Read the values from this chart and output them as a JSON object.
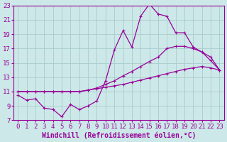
{
  "xlabel": "Windchill (Refroidissement éolien,°C)",
  "background_color": "#cce8e8",
  "grid_color": "#aacccc",
  "line_color": "#990099",
  "xlim": [
    -0.5,
    23.5
  ],
  "ylim": [
    7,
    23
  ],
  "xticks": [
    0,
    1,
    2,
    3,
    4,
    5,
    6,
    7,
    8,
    9,
    10,
    11,
    12,
    13,
    14,
    15,
    16,
    17,
    18,
    19,
    20,
    21,
    22,
    23
  ],
  "yticks": [
    7,
    9,
    11,
    13,
    15,
    17,
    19,
    21,
    23
  ],
  "line1_x": [
    0,
    1,
    2,
    3,
    4,
    5,
    6,
    7,
    8,
    9,
    10,
    11,
    12,
    13,
    14,
    15,
    16,
    17,
    18,
    19,
    20,
    21,
    22,
    23
  ],
  "line1_y": [
    10.5,
    9.8,
    10.0,
    8.7,
    8.5,
    7.5,
    9.2,
    8.5,
    9.0,
    9.7,
    12.5,
    16.8,
    19.5,
    17.2,
    21.5,
    23.2,
    21.8,
    21.5,
    19.2,
    19.2,
    17.2,
    16.5,
    15.3,
    14.0
  ],
  "line2_x": [
    0,
    1,
    2,
    3,
    4,
    5,
    6,
    7,
    8,
    9,
    10,
    11,
    12,
    13,
    14,
    15,
    16,
    17,
    18,
    19,
    20,
    21,
    22,
    23
  ],
  "line2_y": [
    11.0,
    11.0,
    11.0,
    11.0,
    11.0,
    11.0,
    11.0,
    11.0,
    11.2,
    11.5,
    12.0,
    12.5,
    13.2,
    13.8,
    14.5,
    15.2,
    15.8,
    17.0,
    17.3,
    17.3,
    17.0,
    16.5,
    15.8,
    14.0
  ],
  "line3_x": [
    0,
    1,
    2,
    3,
    4,
    5,
    6,
    7,
    8,
    9,
    10,
    11,
    12,
    13,
    14,
    15,
    16,
    17,
    18,
    19,
    20,
    21,
    22,
    23
  ],
  "line3_y": [
    11.0,
    11.0,
    11.0,
    11.0,
    11.0,
    11.0,
    11.0,
    11.0,
    11.2,
    11.4,
    11.6,
    11.8,
    12.0,
    12.3,
    12.6,
    12.9,
    13.2,
    13.5,
    13.8,
    14.1,
    14.3,
    14.5,
    14.3,
    14.0
  ],
  "marker": "+",
  "markersize": 3,
  "linewidth": 0.9,
  "font_family": "monospace",
  "xlabel_fontsize": 7,
  "tick_fontsize": 6.5
}
